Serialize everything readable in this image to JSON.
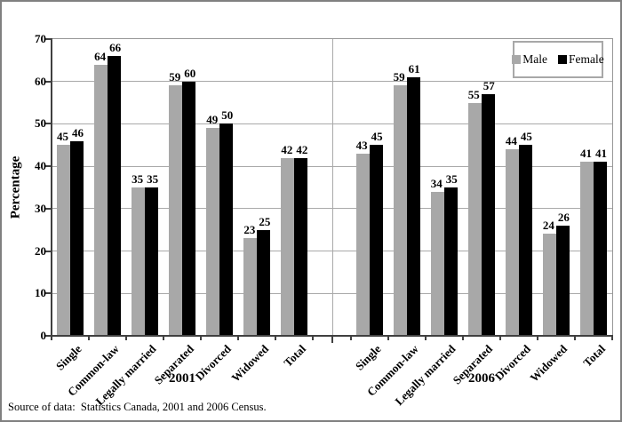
{
  "source_note": "Source of data:  Statistics Canada, 2001 and 2006 Census.",
  "colors": {
    "male_bar": "#a8a8a8",
    "female_bar": "#000000",
    "gridline": "#a9a9a9",
    "axis": "#404040",
    "frame_border": "#808080"
  },
  "legend": {
    "position": "top-right-inside",
    "items": [
      "Male",
      "Female"
    ]
  },
  "chart_data": {
    "type": "bar",
    "title": "",
    "xlabel": "",
    "ylabel": "Percentage",
    "ylim": [
      0,
      70
    ],
    "yticks": [
      0,
      10,
      20,
      30,
      40,
      50,
      60,
      70
    ],
    "grid": true,
    "legend_position": "top-right",
    "categories": [
      "Single",
      "Common-law",
      "Legally married",
      "Separated",
      "Divorced",
      "Widowed",
      "Total"
    ],
    "groups": [
      {
        "label": "2001",
        "series": [
          {
            "name": "Male",
            "color": "#a8a8a8",
            "values": [
              45,
              64,
              35,
              59,
              49,
              23,
              42
            ]
          },
          {
            "name": "Female",
            "color": "#000000",
            "values": [
              46,
              66,
              35,
              60,
              50,
              25,
              42
            ]
          }
        ]
      },
      {
        "label": "2006",
        "series": [
          {
            "name": "Male",
            "color": "#a8a8a8",
            "values": [
              43,
              59,
              34,
              55,
              44,
              24,
              41
            ]
          },
          {
            "name": "Female",
            "color": "#000000",
            "values": [
              45,
              61,
              35,
              57,
              45,
              26,
              41
            ]
          }
        ]
      }
    ]
  }
}
